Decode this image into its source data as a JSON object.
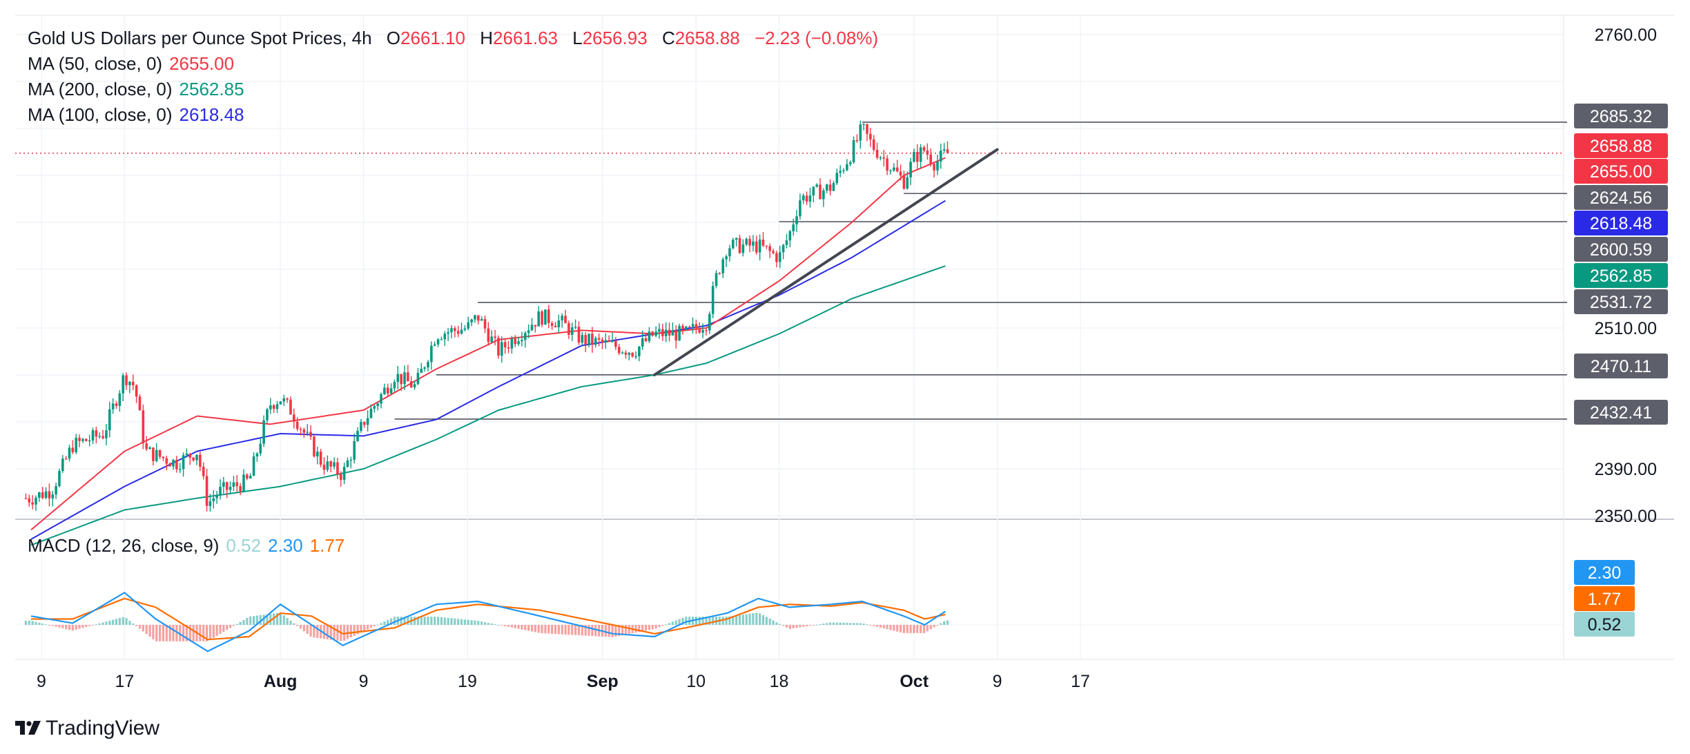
{
  "header": {
    "symbol_title": "Gold US Dollars per Ounce Spot Prices, 4h",
    "open_label": "O",
    "open": "2661.10",
    "high_label": "H",
    "high": "2661.63",
    "low_label": "L",
    "low": "2656.93",
    "close_label": "C",
    "close": "2658.88",
    "change": "−2.23 (−0.08%)"
  },
  "indicators": {
    "ma50": {
      "label": "MA (50, close, 0)",
      "value": "2655.00",
      "color": "#f23645"
    },
    "ma200": {
      "label": "MA (200, close, 0)",
      "value": "2562.85",
      "color": "#089981"
    },
    "ma100": {
      "label": "MA (100, close, 0)",
      "value": "2618.48",
      "color": "#2a2ae6"
    },
    "macd": {
      "label": "MACD (12, 26, close, 9)",
      "hist": "0.52",
      "macd": "2.30",
      "signal": "1.77",
      "hist_color": "#9bd4d4",
      "macd_color": "#2196f3",
      "signal_color": "#ff6d00"
    }
  },
  "price_axis": {
    "ticks": [
      "2760.00",
      "2510.00",
      "2390.00",
      "2350.00"
    ],
    "labels": [
      {
        "text": "2685.32",
        "type": "level",
        "color": "#5d606b"
      },
      {
        "text": "2658.88",
        "type": "last",
        "color": "#f23645"
      },
      {
        "text": "2655.00",
        "type": "ma50",
        "color": "#f23645"
      },
      {
        "text": "2624.56",
        "type": "level",
        "color": "#5d606b"
      },
      {
        "text": "2618.48",
        "type": "ma100",
        "color": "#2a2ae6"
      },
      {
        "text": "2600.59",
        "type": "level",
        "color": "#5d606b"
      },
      {
        "text": "2562.85",
        "type": "ma200",
        "color": "#089981"
      },
      {
        "text": "2531.72",
        "type": "level",
        "color": "#5d606b"
      },
      {
        "text": "2470.11",
        "type": "level",
        "color": "#5d606b"
      },
      {
        "text": "2432.41",
        "type": "level",
        "color": "#5d606b"
      }
    ],
    "macd_labels": [
      {
        "text": "2.30",
        "color": "#2196f3"
      },
      {
        "text": "1.77",
        "color": "#ff6d00"
      },
      {
        "text": "0.52",
        "color": "#9bd4d4"
      }
    ]
  },
  "time_axis": {
    "ticks": [
      {
        "label": "9",
        "bold": false
      },
      {
        "label": "17",
        "bold": false
      },
      {
        "label": "Aug",
        "bold": true
      },
      {
        "label": "9",
        "bold": false
      },
      {
        "label": "19",
        "bold": false
      },
      {
        "label": "Sep",
        "bold": true
      },
      {
        "label": "10",
        "bold": false
      },
      {
        "label": "18",
        "bold": false
      },
      {
        "label": "Oct",
        "bold": true
      },
      {
        "label": "9",
        "bold": false
      },
      {
        "label": "17",
        "bold": false
      }
    ]
  },
  "branding": {
    "logo_text": "TradingView"
  },
  "chart_data": {
    "type": "candlestick",
    "timeframe": "4h",
    "x_range": [
      "Jul 8",
      "Oct 17"
    ],
    "y_range": [
      2340,
      2775
    ],
    "close_path": [
      [
        "Jul 8",
        2365
      ],
      [
        "Jul 10",
        2372
      ],
      [
        "Jul 12",
        2410
      ],
      [
        "Jul 15",
        2420
      ],
      [
        "Jul 17",
        2470
      ],
      [
        "Jul 18",
        2460
      ],
      [
        "Jul 19",
        2405
      ],
      [
        "Jul 22",
        2395
      ],
      [
        "Jul 24",
        2405
      ],
      [
        "Jul 25",
        2360
      ],
      [
        "Jul 26",
        2370
      ],
      [
        "Jul 29",
        2380
      ],
      [
        "Jul 31",
        2445
      ],
      [
        "Aug 1",
        2450
      ],
      [
        "Aug 2",
        2440
      ],
      [
        "Aug 5",
        2395
      ],
      [
        "Aug 7",
        2385
      ],
      [
        "Aug 9",
        2430
      ],
      [
        "Aug 12",
        2470
      ],
      [
        "Aug 14",
        2460
      ],
      [
        "Aug 16",
        2505
      ],
      [
        "Aug 19",
        2510
      ],
      [
        "Aug 20",
        2520
      ],
      [
        "Aug 22",
        2490
      ],
      [
        "Aug 26",
        2520
      ],
      [
        "Aug 28",
        2515
      ],
      [
        "Aug 30",
        2500
      ],
      [
        "Sep 2",
        2495
      ],
      [
        "Sep 4",
        2490
      ],
      [
        "Sep 6",
        2505
      ],
      [
        "Sep 9",
        2505
      ],
      [
        "Sep 11",
        2515
      ],
      [
        "Sep 12",
        2555
      ],
      [
        "Sep 13",
        2580
      ],
      [
        "Sep 16",
        2580
      ],
      [
        "Sep 18",
        2570
      ],
      [
        "Sep 19",
        2590
      ],
      [
        "Sep 20",
        2620
      ],
      [
        "Sep 23",
        2630
      ],
      [
        "Sep 25",
        2660
      ],
      [
        "Sep 26",
        2680
      ],
      [
        "Sep 27",
        2665
      ],
      [
        "Sep 30",
        2635
      ],
      [
        "Oct 1",
        2655
      ],
      [
        "Oct 2",
        2662
      ],
      [
        "Oct 3",
        2650
      ],
      [
        "Oct 4",
        2658.88
      ]
    ],
    "ma50": [
      [
        "Jul 8",
        2338
      ],
      [
        "Jul 17",
        2405
      ],
      [
        "Jul 24",
        2435
      ],
      [
        "Jul 31",
        2428
      ],
      [
        "Aug 9",
        2440
      ],
      [
        "Aug 16",
        2475
      ],
      [
        "Aug 22",
        2500
      ],
      [
        "Aug 30",
        2508
      ],
      [
        "Sep 6",
        2505
      ],
      [
        "Sep 11",
        2510
      ],
      [
        "Sep 18",
        2550
      ],
      [
        "Sep 25",
        2600
      ],
      [
        "Sep 30",
        2640
      ],
      [
        "Oct 4",
        2655.0
      ]
    ],
    "ma100": [
      [
        "Jul 8",
        2330
      ],
      [
        "Jul 17",
        2375
      ],
      [
        "Jul 24",
        2405
      ],
      [
        "Aug 1",
        2420
      ],
      [
        "Aug 9",
        2418
      ],
      [
        "Aug 16",
        2432
      ],
      [
        "Aug 22",
        2460
      ],
      [
        "Aug 30",
        2495
      ],
      [
        "Sep 6",
        2505
      ],
      [
        "Sep 11",
        2512
      ],
      [
        "Sep 18",
        2538
      ],
      [
        "Sep 25",
        2570
      ],
      [
        "Oct 4",
        2618.48
      ]
    ],
    "ma200": [
      [
        "Jul 8",
        2325
      ],
      [
        "Jul 17",
        2355
      ],
      [
        "Jul 24",
        2365
      ],
      [
        "Aug 1",
        2375
      ],
      [
        "Aug 9",
        2390
      ],
      [
        "Aug 16",
        2415
      ],
      [
        "Aug 22",
        2440
      ],
      [
        "Aug 30",
        2460
      ],
      [
        "Sep 6",
        2470
      ],
      [
        "Sep 11",
        2480
      ],
      [
        "Sep 18",
        2505
      ],
      [
        "Sep 25",
        2535
      ],
      [
        "Oct 4",
        2562.85
      ]
    ],
    "horizontal_levels": [
      {
        "value": 2685.32,
        "from": "Sep 26"
      },
      {
        "value": 2624.56,
        "from": "Sep 30"
      },
      {
        "value": 2600.59,
        "from": "Sep 18"
      },
      {
        "value": 2531.72,
        "from": "Aug 20"
      },
      {
        "value": 2470.11,
        "from": "Aug 16"
      },
      {
        "value": 2432.41,
        "from": "Aug 12"
      }
    ],
    "trendline": {
      "from": [
        "Sep 6",
        2470
      ],
      "to": [
        "Oct 9",
        2662
      ]
    },
    "last_price_line": 2658.88,
    "macd_range": [
      -8,
      8
    ],
    "macd": [
      [
        "Jul 8",
        1.5
      ],
      [
        "Jul 12",
        0.3
      ],
      [
        "Jul 17",
        5.5
      ],
      [
        "Jul 20",
        1.0
      ],
      [
        "Jul 25",
        -4.5
      ],
      [
        "Jul 29",
        -1.0
      ],
      [
        "Aug 1",
        3.5
      ],
      [
        "Aug 4",
        0
      ],
      [
        "Aug 7",
        -3.5
      ],
      [
        "Aug 12",
        0.5
      ],
      [
        "Aug 16",
        3.5
      ],
      [
        "Aug 20",
        4.0
      ],
      [
        "Aug 26",
        1.5
      ],
      [
        "Sep 2",
        -1.5
      ],
      [
        "Sep 6",
        -2.0
      ],
      [
        "Sep 9",
        0.5
      ],
      [
        "Sep 13",
        2.0
      ],
      [
        "Sep 16",
        4.5
      ],
      [
        "Sep 19",
        3.0
      ],
      [
        "Sep 23",
        3.5
      ],
      [
        "Sep 26",
        4.0
      ],
      [
        "Sep 30",
        1.5
      ],
      [
        "Oct 2",
        0
      ],
      [
        "Oct 4",
        2.3
      ]
    ],
    "signal": [
      [
        "Jul 8",
        1.0
      ],
      [
        "Jul 12",
        1.0
      ],
      [
        "Jul 17",
        4.5
      ],
      [
        "Jul 20",
        3.0
      ],
      [
        "Jul 25",
        -2.5
      ],
      [
        "Jul 29",
        -2.0
      ],
      [
        "Aug 1",
        2.0
      ],
      [
        "Aug 4",
        1.5
      ],
      [
        "Aug 7",
        -1.5
      ],
      [
        "Aug 12",
        -0.5
      ],
      [
        "Aug 16",
        2.5
      ],
      [
        "Aug 20",
        3.5
      ],
      [
        "Aug 26",
        2.5
      ],
      [
        "Sep 2",
        0
      ],
      [
        "Sep 6",
        -1.5
      ],
      [
        "Sep 9",
        -0.5
      ],
      [
        "Sep 13",
        1.0
      ],
      [
        "Sep 16",
        3.0
      ],
      [
        "Sep 19",
        3.5
      ],
      [
        "Sep 23",
        3.2
      ],
      [
        "Sep 26",
        3.8
      ],
      [
        "Sep 30",
        2.5
      ],
      [
        "Oct 2",
        1.0
      ],
      [
        "Oct 4",
        1.77
      ]
    ],
    "x_tick_dates": [
      "Jul 9",
      "Jul 17",
      "Aug 1",
      "Aug 9",
      "Aug 19",
      "Sep 1",
      "Sep 10",
      "Sep 18",
      "Oct 1",
      "Oct 9",
      "Oct 17"
    ]
  }
}
